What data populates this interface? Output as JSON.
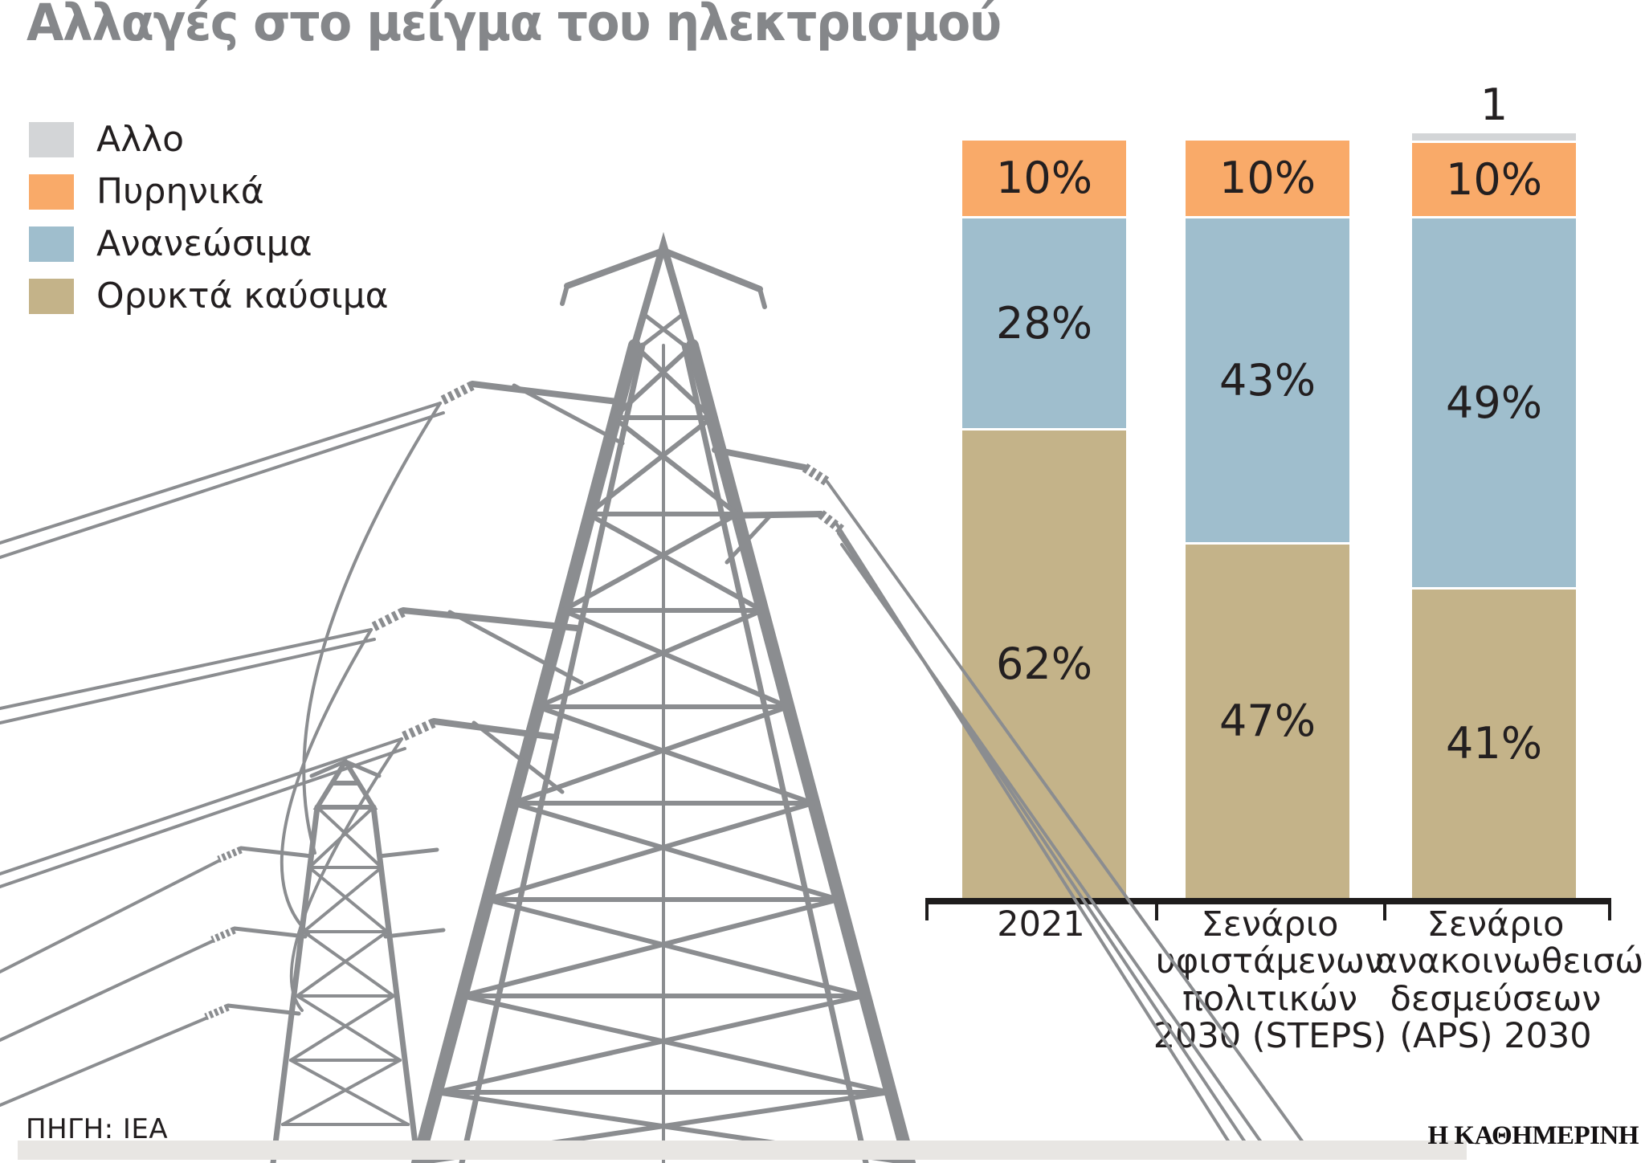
{
  "title": "Αλλαγές στο μείγμα του ηλεκτρισμού",
  "colors": {
    "other": "#d3d5d7",
    "nuclear": "#f9aa69",
    "renewables": "#9fbecd",
    "fossil": "#c4b389",
    "pylon_gray": "#8b8d90",
    "title_gray": "#85878a",
    "text_dark": "#231f20",
    "axis_black": "#1e1c1c",
    "footer_strip": "#e8e6e3"
  },
  "legend": [
    {
      "key": "other",
      "label": "Αλλο"
    },
    {
      "key": "nuclear",
      "label": "Πυρηνικά"
    },
    {
      "key": "renewables",
      "label": "Ανανεώσιμα"
    },
    {
      "key": "fossil",
      "label": "Ορυκτά καύσιμα"
    }
  ],
  "chart_data": {
    "type": "bar",
    "subtype": "stacked-100%",
    "unit": "%",
    "categories": [
      "2021",
      "Σενάριο υφιστάμενων πολιτικών 2030 (STEPS)",
      "Σενάριο ανακοινωθεισών δεσμεύσεων (APS) 2030"
    ],
    "category_lines": [
      [
        "2021"
      ],
      [
        "Σενάριο",
        "υφιστάμενων",
        "πολιτικών",
        "2030 (STEPS)"
      ],
      [
        "Σενάριο",
        "ανακοινωθεισών",
        "δεσμεύσεων",
        "(APS) 2030"
      ]
    ],
    "series_top_to_bottom": [
      {
        "key": "other",
        "name": "Αλλο",
        "values": [
          0,
          0,
          1
        ]
      },
      {
        "key": "nuclear",
        "name": "Πυρηνικά",
        "values": [
          10,
          10,
          10
        ]
      },
      {
        "key": "renewables",
        "name": "Ανανεώσιμα",
        "values": [
          28,
          43,
          49
        ]
      },
      {
        "key": "fossil",
        "name": "Ορυκτά καύσιμα",
        "values": [
          62,
          47,
          41
        ]
      }
    ],
    "data_labels_inside": [
      "10%",
      "28%",
      "62%",
      "10%",
      "43%",
      "47%",
      "10%",
      "49%",
      "41%"
    ],
    "above_bar_labels": [
      "",
      "",
      "1"
    ],
    "ylim": [
      0,
      100
    ],
    "grid": false,
    "legend_position": "top-left"
  },
  "source": "ΠΗΓΗ: ΙΕΑ",
  "brand": "Η ΚΑΘΗΜΕΡΙΝΗ"
}
